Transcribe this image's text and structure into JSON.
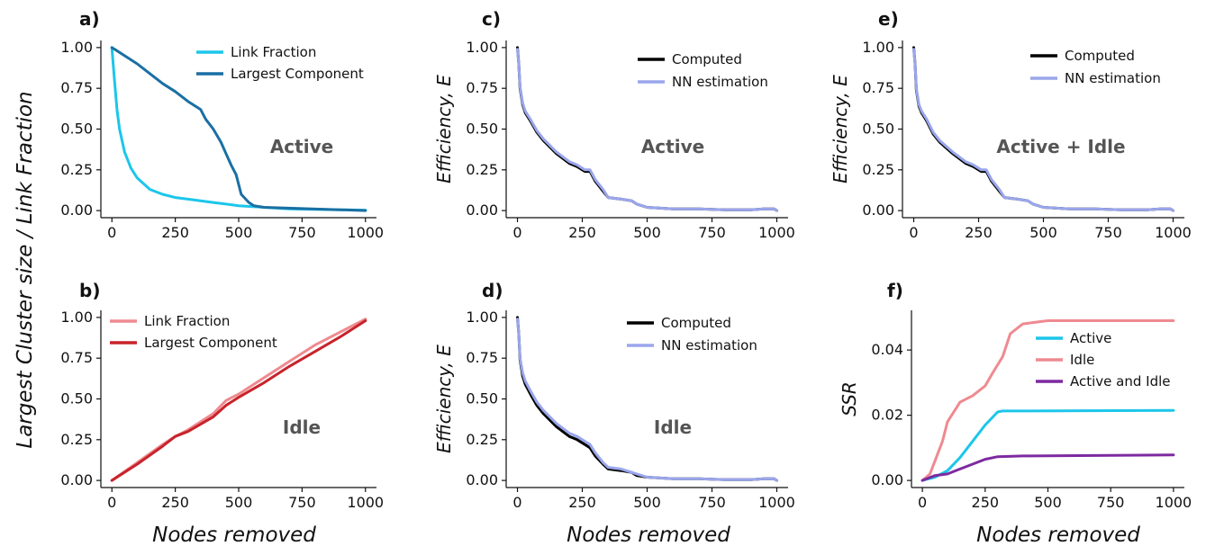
{
  "figure": {
    "y_label": "Largest Cluster size  /  Link Fraction",
    "x_label": "Nodes removed",
    "ssr_label": "SSR"
  },
  "colors": {
    "cyan": "#1cc6ea",
    "dark_blue": "#1a6fa3",
    "pink": "#ee8a90",
    "red": "#c8232b",
    "black": "#000000",
    "lavender": "#9aa6ec",
    "purple": "#7d2aa0"
  },
  "chart_data": [
    {
      "id": "a",
      "panel_label": "a)",
      "type": "line",
      "annotation": "Active",
      "xlim": [
        0,
        1000
      ],
      "ylim": [
        0,
        1
      ],
      "x_ticks": [
        "0",
        "250",
        "500",
        "750",
        "1000"
      ],
      "y_ticks": [
        "0.00",
        "0.25",
        "0.50",
        "0.75",
        "1.00"
      ],
      "series": [
        {
          "name": "Link Fraction",
          "color": "#1cc6ea",
          "x": [
            0,
            10,
            20,
            30,
            50,
            75,
            100,
            150,
            200,
            250,
            300,
            400,
            500,
            600,
            700,
            800,
            900,
            1000
          ],
          "y": [
            1.0,
            0.8,
            0.62,
            0.5,
            0.36,
            0.26,
            0.2,
            0.13,
            0.1,
            0.08,
            0.07,
            0.05,
            0.03,
            0.02,
            0.01,
            0.008,
            0.005,
            0.003
          ]
        },
        {
          "name": "Largest Component",
          "color": "#1a6fa3",
          "x": [
            0,
            10,
            50,
            100,
            150,
            200,
            250,
            300,
            350,
            370,
            400,
            430,
            450,
            470,
            490,
            500,
            510,
            540,
            560,
            600,
            1000
          ],
          "y": [
            1.0,
            0.99,
            0.95,
            0.9,
            0.84,
            0.78,
            0.73,
            0.67,
            0.62,
            0.56,
            0.5,
            0.42,
            0.35,
            0.28,
            0.22,
            0.16,
            0.1,
            0.05,
            0.03,
            0.02,
            0.0
          ]
        }
      ]
    },
    {
      "id": "b",
      "panel_label": "b)",
      "type": "line",
      "annotation": "Idle",
      "xlim": [
        0,
        1000
      ],
      "ylim": [
        0,
        1
      ],
      "x_ticks": [
        "0",
        "250",
        "500",
        "750",
        "1000"
      ],
      "y_ticks": [
        "0.00",
        "0.25",
        "0.50",
        "0.75",
        "1.00"
      ],
      "series": [
        {
          "name": "Link Fraction",
          "color": "#ee8a90",
          "x": [
            0,
            100,
            200,
            250,
            300,
            400,
            450,
            500,
            600,
            700,
            800,
            900,
            1000
          ],
          "y": [
            0.0,
            0.11,
            0.22,
            0.27,
            0.31,
            0.41,
            0.49,
            0.53,
            0.63,
            0.73,
            0.83,
            0.91,
            0.99
          ]
        },
        {
          "name": "Largest Component",
          "color": "#c8232b",
          "x": [
            0,
            100,
            200,
            250,
            300,
            400,
            450,
            500,
            600,
            700,
            800,
            900,
            1000
          ],
          "y": [
            0.0,
            0.1,
            0.21,
            0.27,
            0.3,
            0.39,
            0.46,
            0.51,
            0.6,
            0.7,
            0.79,
            0.88,
            0.98
          ]
        }
      ]
    },
    {
      "id": "c",
      "panel_label": "c)",
      "type": "line",
      "annotation": "Active",
      "ylabel": "Efficiency, E",
      "xlim": [
        0,
        1000
      ],
      "ylim": [
        0,
        1
      ],
      "x_ticks": [
        "0",
        "250",
        "500",
        "750",
        "1000"
      ],
      "y_ticks": [
        "0.00",
        "0.25",
        "0.50",
        "0.75",
        "1.00"
      ],
      "series": [
        {
          "name": "Computed",
          "color": "#000000",
          "x": [
            0,
            5,
            10,
            20,
            30,
            50,
            75,
            100,
            150,
            200,
            230,
            260,
            280,
            300,
            330,
            350,
            400,
            440,
            460,
            500,
            600,
            700,
            800,
            900,
            950,
            990,
            1000
          ],
          "y": [
            1.0,
            0.9,
            0.75,
            0.65,
            0.6,
            0.55,
            0.48,
            0.43,
            0.35,
            0.29,
            0.27,
            0.24,
            0.24,
            0.18,
            0.12,
            0.08,
            0.07,
            0.06,
            0.04,
            0.02,
            0.01,
            0.01,
            0.005,
            0.005,
            0.01,
            0.01,
            0.0
          ]
        },
        {
          "name": "NN estimation",
          "color": "#9aa6ec",
          "x": [
            0,
            5,
            10,
            20,
            30,
            50,
            75,
            100,
            150,
            200,
            230,
            260,
            280,
            300,
            330,
            350,
            400,
            440,
            460,
            500,
            600,
            700,
            800,
            900,
            950,
            990,
            1000
          ],
          "y": [
            0.99,
            0.9,
            0.76,
            0.66,
            0.61,
            0.56,
            0.49,
            0.44,
            0.36,
            0.3,
            0.28,
            0.25,
            0.25,
            0.19,
            0.13,
            0.08,
            0.07,
            0.06,
            0.04,
            0.02,
            0.01,
            0.01,
            0.005,
            0.005,
            0.01,
            0.01,
            0.0
          ]
        }
      ]
    },
    {
      "id": "d",
      "panel_label": "d)",
      "type": "line",
      "annotation": "Idle",
      "ylabel": "Efficiency, E",
      "xlim": [
        0,
        1000
      ],
      "ylim": [
        0,
        1
      ],
      "x_ticks": [
        "0",
        "250",
        "500",
        "750",
        "1000"
      ],
      "y_ticks": [
        "0.00",
        "0.25",
        "0.50",
        "0.75",
        "1.00"
      ],
      "series": [
        {
          "name": "Computed",
          "color": "#000000",
          "x": [
            0,
            5,
            10,
            20,
            30,
            50,
            75,
            100,
            150,
            200,
            230,
            260,
            280,
            300,
            330,
            350,
            400,
            440,
            460,
            500,
            600,
            700,
            800,
            900,
            950,
            990,
            1000
          ],
          "y": [
            1.0,
            0.9,
            0.74,
            0.64,
            0.59,
            0.53,
            0.46,
            0.41,
            0.33,
            0.27,
            0.25,
            0.22,
            0.2,
            0.15,
            0.1,
            0.07,
            0.06,
            0.05,
            0.03,
            0.02,
            0.01,
            0.01,
            0.005,
            0.005,
            0.01,
            0.01,
            0.0
          ]
        },
        {
          "name": "NN estimation",
          "color": "#9aa6ec",
          "x": [
            0,
            5,
            10,
            20,
            30,
            50,
            75,
            100,
            150,
            200,
            230,
            260,
            280,
            300,
            330,
            350,
            400,
            440,
            460,
            500,
            600,
            700,
            800,
            900,
            950,
            990,
            1000
          ],
          "y": [
            0.99,
            0.9,
            0.75,
            0.66,
            0.61,
            0.55,
            0.48,
            0.43,
            0.35,
            0.29,
            0.27,
            0.24,
            0.22,
            0.17,
            0.11,
            0.08,
            0.07,
            0.05,
            0.04,
            0.02,
            0.01,
            0.01,
            0.005,
            0.005,
            0.01,
            0.01,
            0.0
          ]
        }
      ]
    },
    {
      "id": "e",
      "panel_label": "e)",
      "type": "line",
      "annotation": "Active + Idle",
      "ylabel": "Efficiency, E",
      "xlim": [
        0,
        1000
      ],
      "ylim": [
        0,
        1
      ],
      "x_ticks": [
        "0",
        "250",
        "500",
        "750",
        "1000"
      ],
      "y_ticks": [
        "0.00",
        "0.25",
        "0.50",
        "0.75",
        "1.00"
      ],
      "series": [
        {
          "name": "Computed",
          "color": "#000000",
          "x": [
            0,
            5,
            10,
            20,
            30,
            50,
            75,
            100,
            150,
            200,
            230,
            260,
            280,
            300,
            330,
            350,
            400,
            440,
            460,
            500,
            600,
            700,
            800,
            900,
            950,
            990,
            1000
          ],
          "y": [
            1.0,
            0.9,
            0.74,
            0.64,
            0.6,
            0.55,
            0.47,
            0.42,
            0.35,
            0.29,
            0.27,
            0.24,
            0.24,
            0.18,
            0.12,
            0.08,
            0.07,
            0.06,
            0.04,
            0.02,
            0.01,
            0.01,
            0.005,
            0.005,
            0.01,
            0.01,
            0.0
          ]
        },
        {
          "name": "NN estimation",
          "color": "#9aa6ec",
          "x": [
            0,
            5,
            10,
            20,
            30,
            50,
            75,
            100,
            150,
            200,
            230,
            260,
            280,
            300,
            330,
            350,
            400,
            440,
            460,
            500,
            600,
            700,
            800,
            900,
            950,
            990,
            1000
          ],
          "y": [
            0.99,
            0.9,
            0.75,
            0.65,
            0.61,
            0.56,
            0.48,
            0.43,
            0.36,
            0.3,
            0.28,
            0.25,
            0.25,
            0.19,
            0.13,
            0.08,
            0.07,
            0.06,
            0.04,
            0.02,
            0.01,
            0.01,
            0.005,
            0.005,
            0.01,
            0.01,
            0.0
          ]
        }
      ]
    },
    {
      "id": "f",
      "panel_label": "f)",
      "type": "line",
      "ylabel": "SSR",
      "xlim": [
        0,
        1000
      ],
      "ylim": [
        0,
        0.05
      ],
      "x_ticks": [
        "0",
        "250",
        "500",
        "750",
        "1000"
      ],
      "y_ticks": [
        "0.00",
        "0.02",
        "0.04"
      ],
      "y_tick_values": [
        0,
        0.02,
        0.04
      ],
      "series": [
        {
          "name": "Active",
          "color": "#1cc6ea",
          "x": [
            0,
            50,
            100,
            150,
            200,
            250,
            300,
            320,
            400,
            1000
          ],
          "y": [
            0.0,
            0.001,
            0.003,
            0.007,
            0.012,
            0.017,
            0.021,
            0.0213,
            0.0213,
            0.0215
          ]
        },
        {
          "name": "Idle",
          "color": "#ee8a90",
          "x": [
            0,
            30,
            50,
            80,
            100,
            150,
            200,
            250,
            280,
            320,
            350,
            400,
            450,
            500,
            1000
          ],
          "y": [
            0.0,
            0.002,
            0.006,
            0.012,
            0.018,
            0.024,
            0.026,
            0.029,
            0.033,
            0.038,
            0.045,
            0.048,
            0.0485,
            0.049,
            0.049
          ]
        },
        {
          "name": "Active and Idle",
          "color": "#7d2aa0",
          "x": [
            0,
            50,
            100,
            150,
            200,
            250,
            300,
            400,
            1000
          ],
          "y": [
            0.0,
            0.0015,
            0.002,
            0.0035,
            0.005,
            0.0065,
            0.0073,
            0.0075,
            0.0078
          ]
        }
      ]
    }
  ]
}
